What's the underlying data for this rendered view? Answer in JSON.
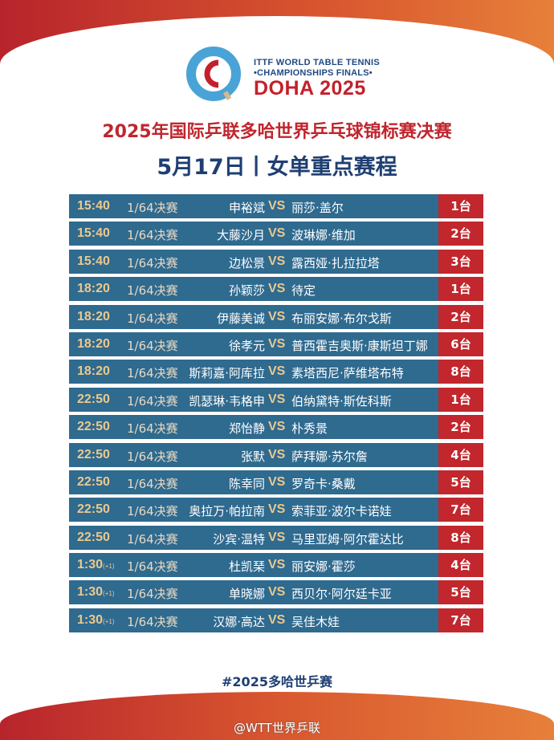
{
  "logo": {
    "line1": "ITTF WORLD TABLE TENNIS",
    "line2": "•CHAMPIONSHIPS FINALS•",
    "line3": "DOHA 2025"
  },
  "title": "2025年国际乒联多哈世界乒乓球锦标赛决赛",
  "subtitle": "5月17日丨女单重点赛程",
  "colors": {
    "row": "#2f6a8f",
    "table_cell": "#c1272d",
    "time": "#ebc98e",
    "title": "#c0262e",
    "subtitle": "#1f3f72"
  },
  "matches": [
    {
      "time": "15:40",
      "next_day": "",
      "round": "1/64决赛",
      "player1": "申裕斌",
      "vs": "VS",
      "player2": "丽莎·盖尔",
      "table": "1台"
    },
    {
      "time": "15:40",
      "next_day": "",
      "round": "1/64决赛",
      "player1": "大藤沙月",
      "vs": "VS",
      "player2": "波琳娜·维加",
      "table": "2台"
    },
    {
      "time": "15:40",
      "next_day": "",
      "round": "1/64决赛",
      "player1": "边松景",
      "vs": "VS",
      "player2": "露西娅·扎拉拉塔",
      "table": "3台"
    },
    {
      "time": "18:20",
      "next_day": "",
      "round": "1/64决赛",
      "player1": "孙颖莎",
      "vs": "VS",
      "player2": "待定",
      "table": "1台"
    },
    {
      "time": "18:20",
      "next_day": "",
      "round": "1/64决赛",
      "player1": "伊藤美诚",
      "vs": "VS",
      "player2": "布丽安娜·布尔戈斯",
      "table": "2台"
    },
    {
      "time": "18:20",
      "next_day": "",
      "round": "1/64决赛",
      "player1": "徐孝元",
      "vs": "VS",
      "player2": "普西霍吉奥斯·康斯坦丁娜",
      "table": "6台"
    },
    {
      "time": "18:20",
      "next_day": "",
      "round": "1/64决赛",
      "player1": "斯莉嘉·阿库拉",
      "vs": "VS",
      "player2": "素塔西尼·萨维塔布特",
      "table": "8台"
    },
    {
      "time": "22:50",
      "next_day": "",
      "round": "1/64决赛",
      "player1": "凯瑟琳·韦格申",
      "vs": "VS",
      "player2": "伯纳黛特·斯佐科斯",
      "table": "1台"
    },
    {
      "time": "22:50",
      "next_day": "",
      "round": "1/64决赛",
      "player1": "郑怡静",
      "vs": "VS",
      "player2": "朴秀景",
      "table": "2台"
    },
    {
      "time": "22:50",
      "next_day": "",
      "round": "1/64决赛",
      "player1": "张默",
      "vs": "VS",
      "player2": "萨拜娜·苏尔詹",
      "table": "4台"
    },
    {
      "time": "22:50",
      "next_day": "",
      "round": "1/64决赛",
      "player1": "陈幸同",
      "vs": "VS",
      "player2": "罗奇卡·桑戴",
      "table": "5台"
    },
    {
      "time": "22:50",
      "next_day": "",
      "round": "1/64决赛",
      "player1": "奥拉万·帕拉南",
      "vs": "VS",
      "player2": "索菲亚·波尔卡诺娃",
      "table": "7台"
    },
    {
      "time": "22:50",
      "next_day": "",
      "round": "1/64决赛",
      "player1": "沙宾·温特",
      "vs": "VS",
      "player2": "马里亚姆·阿尔霍达比",
      "table": "8台"
    },
    {
      "time": "1:30",
      "next_day": "(+1)",
      "round": "1/64决赛",
      "player1": "杜凯琹",
      "vs": "VS",
      "player2": "丽安娜·霍莎",
      "table": "4台"
    },
    {
      "time": "1:30",
      "next_day": "(+1)",
      "round": "1/64决赛",
      "player1": "单晓娜",
      "vs": "VS",
      "player2": "西贝尔·阿尔廷卡亚",
      "table": "5台"
    },
    {
      "time": "1:30",
      "next_day": "(+1)",
      "round": "1/64决赛",
      "player1": "汉娜·高达",
      "vs": "VS",
      "player2": "吴佳木娃",
      "table": "7台"
    }
  ],
  "hashtag": "#2025多哈世乒赛",
  "watermark": "@WTT世界乒联"
}
